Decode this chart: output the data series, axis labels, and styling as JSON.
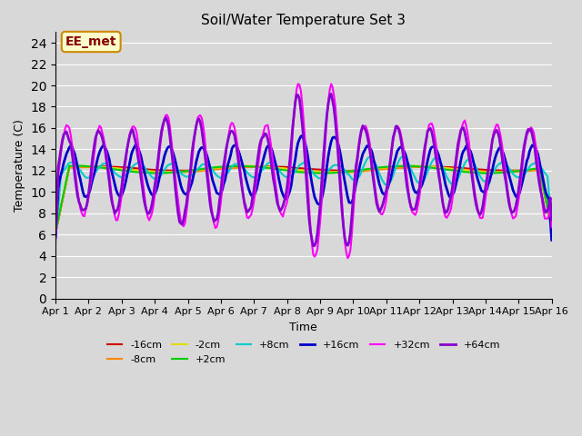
{
  "title": "Soil/Water Temperature Set 3",
  "xlabel": "Time",
  "ylabel": "Temperature (C)",
  "ylim": [
    0,
    25
  ],
  "yticks": [
    0,
    2,
    4,
    6,
    8,
    10,
    12,
    14,
    16,
    18,
    20,
    22,
    24
  ],
  "xlabels": [
    "Apr 1",
    "Apr 2",
    "Apr 3",
    "Apr 4",
    "Apr 5",
    "Apr 6",
    "Apr 7",
    "Apr 8",
    "Apr 9",
    "Apr 10",
    "Apr 11",
    "Apr 12",
    "Apr 13",
    "Apr 14",
    "Apr 15",
    "Apr 16"
  ],
  "n_points": 361,
  "annotation_text": "EE_met",
  "annotation_bg": "#ffffcc",
  "annotation_border": "#cc8800",
  "annotation_text_color": "#880000",
  "series_colors": {
    "-16cm": "#cc0000",
    "-8cm": "#ff8800",
    "-2cm": "#dddd00",
    "+2cm": "#00cc00",
    "+8cm": "#00cccc",
    "+16cm": "#0000cc",
    "+32cm": "#ff00ff",
    "+64cm": "#8800cc"
  },
  "series_lw": {
    "-16cm": 1.5,
    "-8cm": 1.5,
    "-2cm": 1.5,
    "+2cm": 1.5,
    "+8cm": 1.5,
    "+16cm": 2.0,
    "+32cm": 1.5,
    "+64cm": 2.0
  }
}
